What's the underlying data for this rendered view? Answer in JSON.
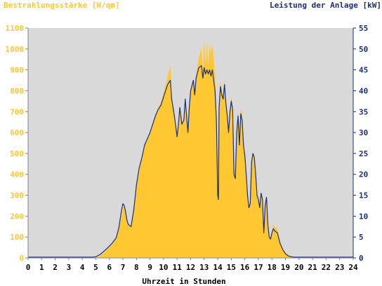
{
  "chart_data": {
    "type": "area",
    "left_axis_title": "Bestrahlungsstärke [W/qm]",
    "right_axis_title": "Leistung der Anlage [kW]",
    "xlabel": "Uhrzeit in Stunden",
    "xlim": [
      0,
      24
    ],
    "x_ticks": [
      "0",
      "1",
      "2",
      "3",
      "4",
      "5",
      "6",
      "7",
      "8",
      "9",
      "10",
      "11",
      "12",
      "13",
      "14",
      "15",
      "16",
      "17",
      "18",
      "19",
      "20",
      "21",
      "22",
      "23",
      "24"
    ],
    "ylim_left": [
      0,
      1100
    ],
    "y_ticks_left": [
      "0",
      "100",
      "200",
      "300",
      "400",
      "500",
      "600",
      "700",
      "800",
      "900",
      "1000",
      "1100"
    ],
    "ylim_right": [
      0,
      55
    ],
    "y_ticks_right": [
      "0",
      "5",
      "10",
      "15",
      "20",
      "25",
      "30",
      "35",
      "40",
      "45",
      "50",
      "55"
    ],
    "grid": false,
    "colors": {
      "plot_background": "#d9d9d9",
      "irradiance_fill": "#ffc832",
      "power_line": "#1a2f7a",
      "left_axis_text": "#ffc832",
      "right_axis_text": "#1a2f7a",
      "x_axis_text": "#000000"
    },
    "series": [
      {
        "name": "Bestrahlungsstärke [W/qm]",
        "axis": "left",
        "style": "area",
        "x": [
          0,
          4.8,
          5.0,
          5.3,
          5.6,
          5.9,
          6.2,
          6.5,
          6.7,
          6.9,
          7.0,
          7.1,
          7.2,
          7.3,
          7.4,
          7.6,
          7.8,
          8.0,
          8.2,
          8.4,
          8.6,
          8.8,
          9.0,
          9.2,
          9.4,
          9.6,
          9.8,
          10.0,
          10.2,
          10.3,
          10.5,
          10.6,
          10.8,
          11.0,
          11.1,
          11.2,
          11.35,
          11.5,
          11.6,
          11.8,
          11.9,
          12.0,
          12.2,
          12.3,
          12.4,
          12.6,
          12.8,
          12.9,
          13.0,
          13.1,
          13.2,
          13.3,
          13.4,
          13.5,
          13.6,
          13.7,
          13.8,
          13.9,
          14.0,
          14.05,
          14.1,
          14.2,
          14.3,
          14.4,
          14.5,
          14.6,
          14.7,
          14.8,
          14.9,
          15.0,
          15.1,
          15.2,
          15.3,
          15.4,
          15.5,
          15.6,
          15.7,
          15.8,
          15.9,
          16.0,
          16.1,
          16.2,
          16.3,
          16.4,
          16.5,
          16.6,
          16.7,
          16.8,
          16.9,
          17.0,
          17.1,
          17.2,
          17.3,
          17.4,
          17.5,
          17.6,
          17.7,
          17.8,
          17.9,
          18.0,
          18.1,
          18.2,
          18.4,
          18.6,
          18.8,
          19.0,
          19.2,
          19.4,
          19.6,
          19.8,
          20.0,
          24
        ],
        "values": [
          0,
          0,
          2,
          10,
          25,
          45,
          65,
          90,
          140,
          200,
          250,
          240,
          210,
          175,
          160,
          150,
          220,
          340,
          420,
          480,
          540,
          570,
          600,
          640,
          680,
          720,
          740,
          790,
          840,
          870,
          920,
          780,
          680,
          580,
          650,
          720,
          640,
          660,
          770,
          600,
          720,
          800,
          860,
          780,
          880,
          960,
          1000,
          900,
          1040,
          930,
          1030,
          920,
          1020,
          980,
          1020,
          950,
          880,
          700,
          330,
          300,
          760,
          850,
          800,
          780,
          850,
          760,
          700,
          620,
          720,
          770,
          730,
          400,
          380,
          620,
          700,
          540,
          720,
          690,
          550,
          500,
          420,
          300,
          250,
          260,
          460,
          500,
          480,
          400,
          300,
          280,
          240,
          310,
          280,
          120,
          250,
          300,
          170,
          100,
          90,
          120,
          160,
          150,
          140,
          80,
          45,
          25,
          15,
          8,
          4,
          2,
          0,
          0
        ],
        "color": "#ffc832"
      },
      {
        "name": "Leistung der Anlage [kW]",
        "axis": "right",
        "style": "line",
        "x": [
          0,
          4.8,
          5.0,
          5.3,
          5.6,
          5.9,
          6.2,
          6.5,
          6.7,
          6.9,
          7.0,
          7.1,
          7.2,
          7.3,
          7.4,
          7.6,
          7.8,
          8.0,
          8.2,
          8.4,
          8.6,
          8.8,
          9.0,
          9.2,
          9.4,
          9.6,
          9.8,
          10.0,
          10.2,
          10.3,
          10.5,
          10.6,
          10.8,
          11.0,
          11.1,
          11.2,
          11.35,
          11.5,
          11.6,
          11.8,
          11.9,
          12.0,
          12.2,
          12.3,
          12.4,
          12.6,
          12.8,
          12.9,
          13.0,
          13.1,
          13.2,
          13.3,
          13.4,
          13.5,
          13.6,
          13.7,
          13.8,
          13.9,
          14.0,
          14.05,
          14.1,
          14.2,
          14.3,
          14.4,
          14.5,
          14.6,
          14.7,
          14.8,
          14.9,
          15.0,
          15.1,
          15.2,
          15.3,
          15.4,
          15.5,
          15.6,
          15.7,
          15.8,
          15.9,
          16.0,
          16.1,
          16.2,
          16.3,
          16.4,
          16.5,
          16.6,
          16.7,
          16.8,
          16.9,
          17.0,
          17.1,
          17.2,
          17.3,
          17.4,
          17.5,
          17.6,
          17.7,
          17.8,
          17.9,
          18.0,
          18.1,
          18.2,
          18.4,
          18.6,
          18.8,
          19.0,
          19.2,
          19.4,
          19.6,
          19.8,
          20.0,
          24
        ],
        "values": [
          0.2,
          0.2,
          0.3,
          0.8,
          1.6,
          2.5,
          3.5,
          4.8,
          7.2,
          11.5,
          13.0,
          12.5,
          11.0,
          9.0,
          8.0,
          7.5,
          11.5,
          17.5,
          21.5,
          24.0,
          27.0,
          28.5,
          30.0,
          32.0,
          34.0,
          35.5,
          36.5,
          38.5,
          40.5,
          41.5,
          42.5,
          38.0,
          34.0,
          29.0,
          32.0,
          36.0,
          32.0,
          33.0,
          38.0,
          30.0,
          36.0,
          40.0,
          42.5,
          39.0,
          43.0,
          45.5,
          46.0,
          43.0,
          45.5,
          44.0,
          45.0,
          44.0,
          45.0,
          43.5,
          45.0,
          42.5,
          40.0,
          33.0,
          15.0,
          14.0,
          36.0,
          41.0,
          39.0,
          38.0,
          41.5,
          37.0,
          34.0,
          30.0,
          35.0,
          37.5,
          35.5,
          20.0,
          19.0,
          30.0,
          34.0,
          27.0,
          34.5,
          33.0,
          27.0,
          24.5,
          20.0,
          15.0,
          12.0,
          13.0,
          23.0,
          25.0,
          24.0,
          20.0,
          15.0,
          14.0,
          12.0,
          15.5,
          14.0,
          6.0,
          12.5,
          14.5,
          8.0,
          5.0,
          4.5,
          6.0,
          7.0,
          6.5,
          6.0,
          3.5,
          2.0,
          1.0,
          0.5,
          0.3,
          0.2,
          0.2,
          0.2,
          0.2
        ],
        "color": "#1a2f7a"
      }
    ]
  }
}
